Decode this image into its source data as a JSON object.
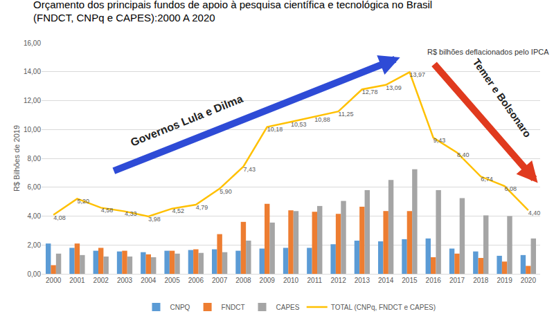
{
  "chart_data": {
    "type": "bar",
    "title": "Orçamento dos principais fundos de apoio à pesquisa científica e tecnológica no Brasil",
    "subtitle": "(FNDCT, CNPq e CAPES):2000 A 2020",
    "y_label": "R$ Bilhões de 2019",
    "annotations": [
      "R$ bilhões deflacionados pelo IPCA",
      "Governos Lula e Dilma",
      "Temer e Bolsonaro"
    ],
    "categories": [
      "2000",
      "2001",
      "2002",
      "2003",
      "2004",
      "2005",
      "2006",
      "2007",
      "2008",
      "2009",
      "2010",
      "2011",
      "2012",
      "2013",
      "2014",
      "2015",
      "2016",
      "2017",
      "2018",
      "2019",
      "2020"
    ],
    "series": [
      {
        "name": "CNPQ",
        "type": "bar",
        "color": "#5b9bd5",
        "values": [
          2.1,
          1.8,
          1.6,
          1.55,
          1.5,
          1.6,
          1.65,
          1.7,
          1.6,
          1.75,
          1.8,
          1.8,
          2.05,
          2.3,
          2.25,
          2.4,
          2.45,
          1.75,
          1.55,
          1.25,
          1.3
        ]
      },
      {
        "name": "FNDCT",
        "type": "bar",
        "color": "#ed7d31",
        "values": [
          0.6,
          2.1,
          1.8,
          1.6,
          1.35,
          1.6,
          1.7,
          2.75,
          3.6,
          4.85,
          4.4,
          4.3,
          4.15,
          4.65,
          4.35,
          4.35,
          1.15,
          1.4,
          1.1,
          0.85,
          0.55
        ]
      },
      {
        "name": "CAPES",
        "type": "bar",
        "color": "#a5a5a5",
        "values": [
          1.4,
          1.3,
          1.2,
          1.2,
          1.15,
          1.4,
          1.45,
          1.5,
          2.3,
          3.55,
          4.35,
          4.7,
          5.05,
          5.8,
          6.5,
          7.25,
          5.8,
          5.25,
          4.05,
          4.0,
          2.45
        ]
      },
      {
        "name": "TOTAL (CNPq, FNDCT e CAPES)",
        "type": "line",
        "color": "#ffc000",
        "data_labels": true,
        "values": [
          4.08,
          5.2,
          4.58,
          4.33,
          3.98,
          4.52,
          4.79,
          5.9,
          7.43,
          10.18,
          10.53,
          10.88,
          11.25,
          12.78,
          13.09,
          13.97,
          9.43,
          8.4,
          6.74,
          6.08,
          4.4
        ],
        "value_labels": [
          "4,08",
          "5,20",
          "4,58",
          "4,33",
          "3,98",
          "4,52",
          "4,79",
          "5,90",
          "7,43",
          "10,18",
          "10,53",
          "10,88",
          "11,25",
          "12,78",
          "13,09",
          "13,97",
          "9,43",
          "8,40",
          "6,74",
          "6,08",
          "4,40"
        ]
      }
    ],
    "ylim": [
      0,
      16
    ],
    "yticks": [
      {
        "value": 0,
        "label": "0,00"
      },
      {
        "value": 2,
        "label": "2,00"
      },
      {
        "value": 4,
        "label": "4,00"
      },
      {
        "value": 6,
        "label": "6,00"
      },
      {
        "value": 8,
        "label": "8,00"
      },
      {
        "value": 10,
        "label": "10,00"
      },
      {
        "value": 12,
        "label": "12,00"
      },
      {
        "value": 14,
        "label": "14,00"
      },
      {
        "value": 16,
        "label": "16,00"
      }
    ],
    "grid": true,
    "legend": "bottom"
  }
}
